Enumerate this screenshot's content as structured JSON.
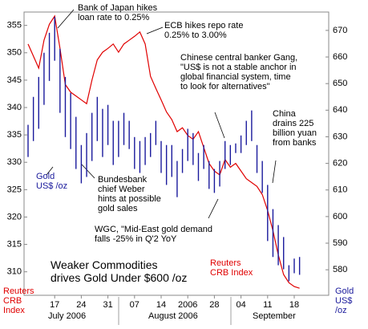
{
  "chart_data": {
    "type": "combo",
    "title": "Weaker Commodities\ndrives Gold Under $600 /oz",
    "ylabel": "Reuters\nCRB\nIndex",
    "y2label": "Gold\nUS$\n/oz",
    "categories": [
      null,
      null,
      null,
      null,
      null,
      "17",
      null,
      null,
      null,
      null,
      "24",
      null,
      null,
      null,
      null,
      "31",
      null,
      null,
      null,
      null,
      "07",
      null,
      null,
      null,
      null,
      "14",
      null,
      null,
      null,
      null,
      "2006",
      null,
      null,
      null,
      null,
      "28",
      null,
      null,
      null,
      null,
      "04",
      null,
      null,
      null,
      null,
      "11",
      null,
      null,
      null,
      null,
      "18",
      null
    ],
    "months": [
      "July 2006",
      "August 2006",
      "September"
    ],
    "ylim": [
      306,
      357
    ],
    "yticks": [
      310,
      315,
      320,
      325,
      330,
      335,
      340,
      345,
      350,
      355
    ],
    "y2lim": [
      571,
      676
    ],
    "y2ticks": [
      580,
      590,
      600,
      610,
      620,
      630,
      640,
      650,
      660,
      670
    ],
    "series": [
      {
        "name": "Reuters\nCRB Index",
        "type": "line",
        "axis": "y",
        "color": "#e00000",
        "values": [
          351.6,
          349.4,
          347.2,
          352.3,
          355.2,
          356.7,
          350.8,
          344.2,
          342.8,
          342.1,
          341.4,
          340.7,
          345.0,
          348.7,
          350.1,
          350.8,
          351.6,
          350.1,
          351.6,
          352.3,
          353.0,
          353.8,
          351.6,
          345.7,
          343.5,
          341.4,
          339.2,
          337.8,
          335.6,
          336.3,
          334.9,
          334.2,
          335.6,
          332.7,
          329.8,
          328.4,
          327.7,
          330.5,
          329.1,
          329.8,
          328.4,
          327.0,
          326.3,
          325.6,
          324.1,
          321.2,
          317.5,
          313.1,
          309.5,
          308.0,
          307.3,
          307.0
        ]
      },
      {
        "name": "Gold\nUS$ /oz",
        "type": "range",
        "axis": "y2",
        "color": "#1a1a9c",
        "high": [
          634.5,
          645.0,
          652.5,
          661.6,
          669.1,
          675.1,
          663.1,
          652.5,
          646.5,
          637.5,
          626.9,
          631.4,
          639.0,
          645.0,
          640.5,
          642.0,
          636.0,
          636.0,
          639.0,
          636.0,
          629.9,
          628.4,
          629.9,
          631.4,
          636.0,
          628.4,
          626.9,
          626.9,
          620.9,
          625.4,
          633.0,
          631.4,
          623.9,
          626.9,
          620.9,
          617.9,
          620.9,
          628.4,
          626.9,
          627.5,
          630.5,
          636.0,
          639.9,
          626.9,
          620.9,
          611.9,
          602.8,
          596.8,
          592.3,
          581.7,
          584.2,
          584.8
        ],
        "low": [
          622.4,
          628.4,
          633.0,
          642.0,
          651.0,
          658.6,
          639.0,
          629.9,
          625.4,
          617.9,
          612.5,
          614.9,
          620.9,
          628.4,
          622.4,
          626.9,
          619.4,
          622.4,
          626.9,
          625.4,
          617.9,
          616.4,
          619.4,
          622.4,
          626.9,
          616.4,
          611.9,
          614.9,
          607.3,
          616.4,
          620.9,
          619.4,
          613.4,
          617.9,
          610.4,
          608.9,
          611.3,
          617.9,
          619.4,
          623.9,
          623.9,
          626.9,
          628.4,
          616.4,
          608.9,
          590.8,
          584.8,
          581.7,
          580.2,
          575.7,
          578.7,
          578.1
        ]
      }
    ],
    "annotations": [
      "Bank of Japan hikes\nloan rate to 0.25%",
      "ECB hikes repo rate\n0.25% to 3.00%",
      "Chinese central banker Gang,\n\"US$ is not a stable anchor in\nglobal financial system, time\nto look for alternatives\"",
      "China\ndrains 225\nbillion yuan\nfrom banks",
      "Bundesbank\nchief Weber\nhints at possible\ngold sales",
      "WGC, \"Mid-East gold demand\nfalls -25% in Q'2 YoY"
    ]
  }
}
